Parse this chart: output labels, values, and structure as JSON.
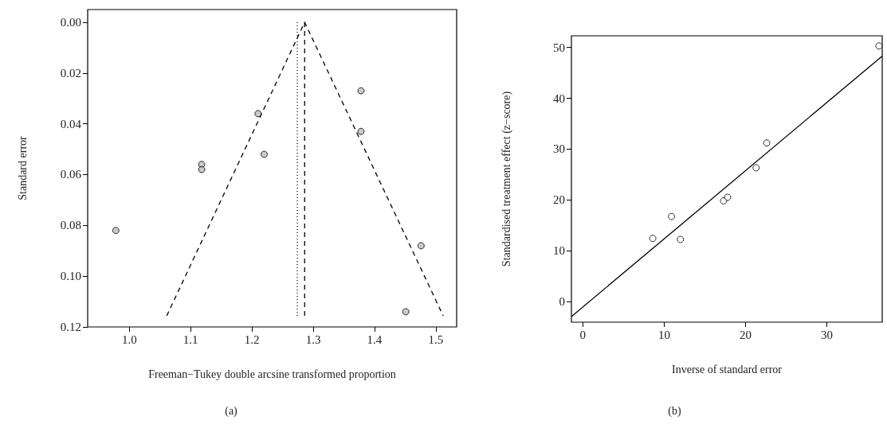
{
  "chart_data": [
    {
      "type": "scatter",
      "xlabel": "Freeman−Tukey double arcsine transformed proportion",
      "ylabel": "Standard error",
      "annotations": [
        "(a)"
      ],
      "grid": false,
      "xlim": [
        0.932,
        1.534
      ],
      "xticks": [
        {
          "value": 1,
          "label": "1.0"
        },
        1.1,
        1.2,
        1.3,
        1.4,
        1.5
      ],
      "ylim": [
        0.12,
        -0.005
      ],
      "yticks": [
        {
          "value": 0,
          "label": "0.00"
        },
        0.02,
        0.04,
        0.06,
        0.08,
        {
          "value": 0.1,
          "label": "0.10"
        },
        {
          "value": 0.12,
          "label": "0.12"
        }
      ],
      "series": [
        {
          "marker": "circle",
          "color": "#bdbdbd",
          "x": [
            0.978,
            1.118,
            1.118,
            1.21,
            1.22,
            1.378,
            1.378,
            1.476,
            1.451
          ],
          "values": [
            0.082,
            0.056,
            0.058,
            0.036,
            0.052,
            0.027,
            0.043,
            0.088,
            0.114
          ]
        },
        {
          "type": "line",
          "marker": "none",
          "line_style": "dashed",
          "color": "#000000",
          "x": [
            1.061,
            1.286,
            1.512
          ],
          "values": [
            0.1156,
            0,
            0.1156
          ]
        },
        {
          "type": "line",
          "marker": "none",
          "line_style": "dashed",
          "color": "#000000",
          "x": [
            1.286,
            1.286
          ],
          "values": [
            0,
            0.1156
          ]
        },
        {
          "type": "line",
          "marker": "none",
          "line_style": "dotted",
          "color": "#000000",
          "x": [
            1.274,
            1.274
          ],
          "values": [
            0,
            0.1156
          ]
        }
      ]
    },
    {
      "type": "scatter",
      "xlabel": "Inverse of standard error",
      "ylabel": "Standardised treatment effect (z−score)",
      "annotations": [
        "(b)"
      ],
      "grid": false,
      "xlim": [
        -1.4,
        36.8
      ],
      "xticks": [
        0,
        10,
        20,
        30
      ],
      "ylim": [
        -4.1,
        52.3
      ],
      "yticks": [
        0,
        10,
        20,
        30,
        40,
        50
      ],
      "series": [
        {
          "marker": "circle",
          "color": "#ffffff",
          "x": [
            8.6,
            10.9,
            12.0,
            17.3,
            17.8,
            21.3,
            22.6,
            36.4
          ],
          "values": [
            12.4,
            16.7,
            12.2,
            19.8,
            20.5,
            26.3,
            31.2,
            50.3
          ]
        },
        {
          "type": "line",
          "marker": "none",
          "line_style": "solid",
          "color": "#000000",
          "x": [
            -1.4,
            36.8
          ],
          "values": [
            -3.0,
            48.3
          ]
        }
      ]
    }
  ]
}
